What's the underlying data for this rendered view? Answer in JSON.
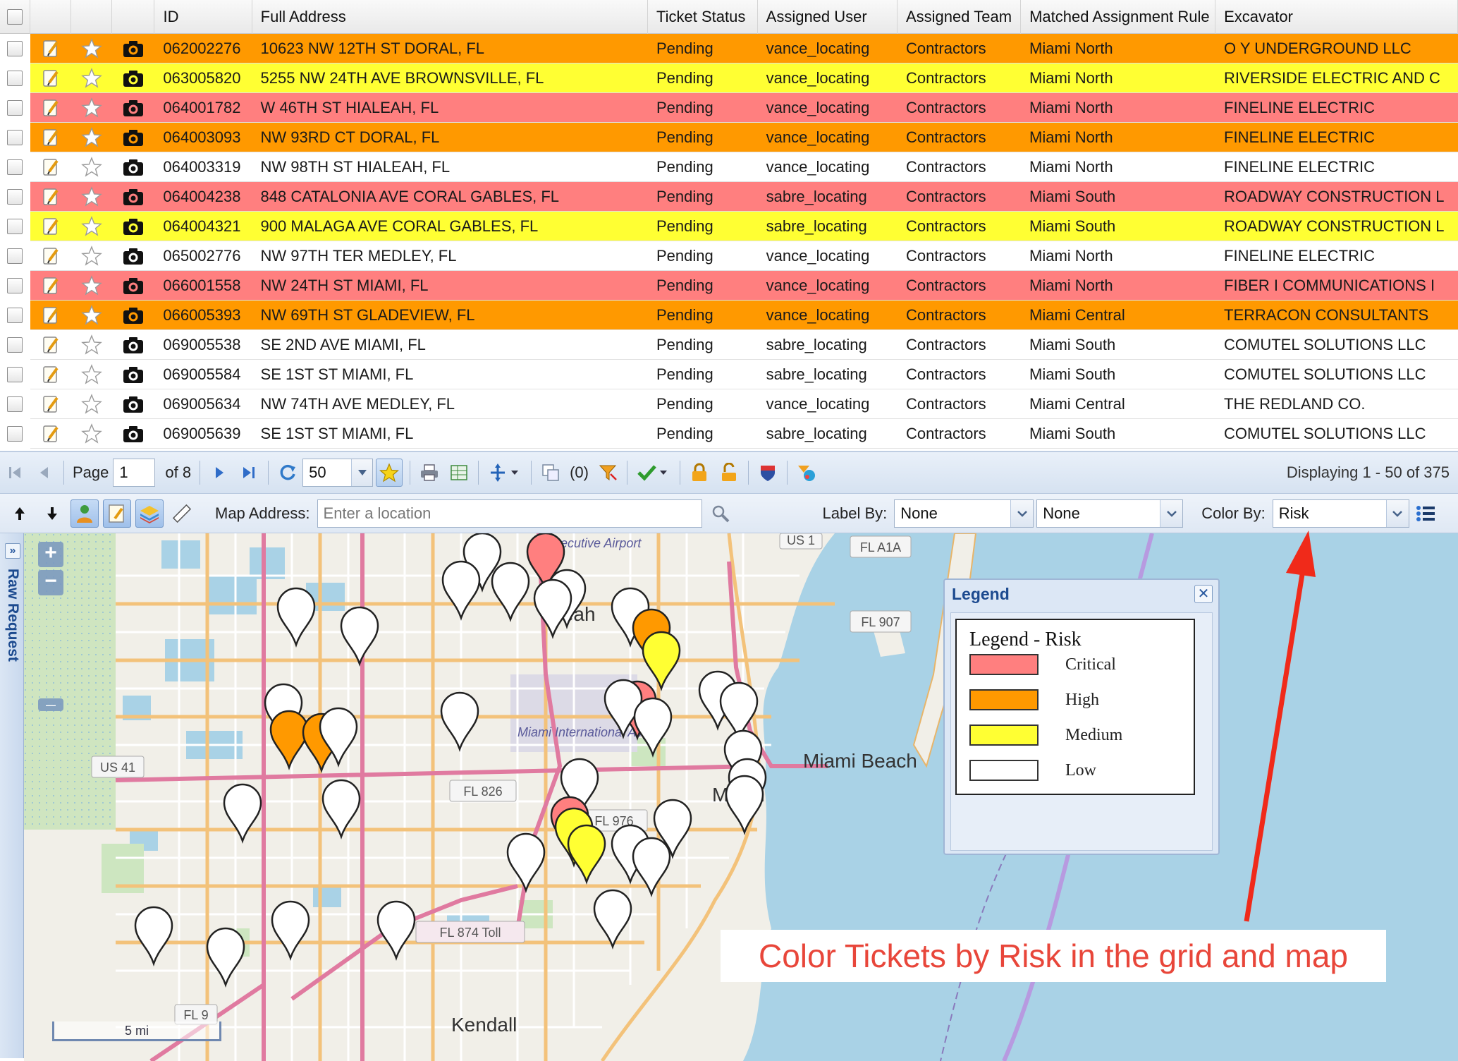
{
  "grid": {
    "columns": [
      "ID",
      "Full Address",
      "Ticket Status",
      "Assigned User",
      "Assigned Team",
      "Matched Assignment Rule",
      "Excavator"
    ],
    "rows": [
      {
        "id": "062002276",
        "address": "10623 NW 12TH ST DORAL, FL",
        "status": "Pending",
        "user": "vance_locating",
        "team": "Contractors",
        "rule": "Miami North",
        "excavator": "O Y UNDERGROUND LLC",
        "risk": "High"
      },
      {
        "id": "063005820",
        "address": "5255 NW 24TH AVE BROWNSVILLE, FL",
        "status": "Pending",
        "user": "vance_locating",
        "team": "Contractors",
        "rule": "Miami North",
        "excavator": "RIVERSIDE ELECTRIC AND C",
        "risk": "Medium"
      },
      {
        "id": "064001782",
        "address": "W 46TH ST HIALEAH, FL",
        "status": "Pending",
        "user": "vance_locating",
        "team": "Contractors",
        "rule": "Miami North",
        "excavator": "FINELINE ELECTRIC",
        "risk": "Critical"
      },
      {
        "id": "064003093",
        "address": "NW 93RD CT DORAL, FL",
        "status": "Pending",
        "user": "vance_locating",
        "team": "Contractors",
        "rule": "Miami North",
        "excavator": "FINELINE ELECTRIC",
        "risk": "High"
      },
      {
        "id": "064003319",
        "address": "NW 98TH ST HIALEAH, FL",
        "status": "Pending",
        "user": "vance_locating",
        "team": "Contractors",
        "rule": "Miami North",
        "excavator": "FINELINE ELECTRIC",
        "risk": "Low"
      },
      {
        "id": "064004238",
        "address": "848 CATALONIA AVE CORAL GABLES, FL",
        "status": "Pending",
        "user": "sabre_locating",
        "team": "Contractors",
        "rule": "Miami South",
        "excavator": "ROADWAY CONSTRUCTION L",
        "risk": "Critical"
      },
      {
        "id": "064004321",
        "address": "900 MALAGA AVE CORAL GABLES, FL",
        "status": "Pending",
        "user": "sabre_locating",
        "team": "Contractors",
        "rule": "Miami South",
        "excavator": "ROADWAY CONSTRUCTION L",
        "risk": "Medium"
      },
      {
        "id": "065002776",
        "address": "NW 97TH TER MEDLEY, FL",
        "status": "Pending",
        "user": "vance_locating",
        "team": "Contractors",
        "rule": "Miami North",
        "excavator": "FINELINE ELECTRIC",
        "risk": "Low"
      },
      {
        "id": "066001558",
        "address": "NW 24TH ST MIAMI, FL",
        "status": "Pending",
        "user": "vance_locating",
        "team": "Contractors",
        "rule": "Miami North",
        "excavator": "FIBER I COMMUNICATIONS I",
        "risk": "Critical"
      },
      {
        "id": "066005393",
        "address": "NW 69TH ST GLADEVIEW, FL",
        "status": "Pending",
        "user": "vance_locating",
        "team": "Contractors",
        "rule": "Miami Central",
        "excavator": "TERRACON CONSULTANTS",
        "risk": "High"
      },
      {
        "id": "069005538",
        "address": "SE 2ND AVE MIAMI, FL",
        "status": "Pending",
        "user": "sabre_locating",
        "team": "Contractors",
        "rule": "Miami South",
        "excavator": "COMUTEL SOLUTIONS LLC",
        "risk": "Low"
      },
      {
        "id": "069005584",
        "address": "SE 1ST ST MIAMI, FL",
        "status": "Pending",
        "user": "sabre_locating",
        "team": "Contractors",
        "rule": "Miami South",
        "excavator": "COMUTEL SOLUTIONS LLC",
        "risk": "Low"
      },
      {
        "id": "069005634",
        "address": "NW 74TH AVE MEDLEY, FL",
        "status": "Pending",
        "user": "vance_locating",
        "team": "Contractors",
        "rule": "Miami Central",
        "excavator": "THE REDLAND CO.",
        "risk": "Low"
      },
      {
        "id": "069005639",
        "address": "SE 1ST ST MIAMI, FL",
        "status": "Pending",
        "user": "sabre_locating",
        "team": "Contractors",
        "rule": "Miami South",
        "excavator": "COMUTEL SOLUTIONS LLC",
        "risk": "Low"
      }
    ]
  },
  "pager": {
    "page_label": "Page",
    "page_value": "1",
    "of_label": "of 8",
    "page_size": "50",
    "selected_count": "(0)",
    "display_text": "Displaying 1 - 50 of 375"
  },
  "map_toolbar": {
    "address_label": "Map Address:",
    "address_placeholder": "Enter a location",
    "label_by_label": "Label By:",
    "label_by_value_1": "None",
    "label_by_value_2": "None",
    "color_by_label": "Color By:",
    "color_by_value": "Risk"
  },
  "side_panel": {
    "title": "Raw Request"
  },
  "map": {
    "scale_label": "5 mi",
    "place_labels": [
      "Miami Beach",
      "Kendall",
      "Miami",
      "aleah",
      "Miami International Airport",
      "Executive Airport"
    ],
    "road_labels": [
      "FL A1A",
      "FL 907",
      "FL 826",
      "FL 976",
      "FL 874 Toll",
      "US 41",
      "US 1",
      "FL 9"
    ]
  },
  "legend": {
    "header": "Legend",
    "title": "Legend - Risk",
    "items": [
      {
        "name": "Critical",
        "color": "#ff7f7f"
      },
      {
        "name": "High",
        "color": "#ff9900"
      },
      {
        "name": "Medium",
        "color": "#ffff33"
      },
      {
        "name": "Low",
        "color": "#ffffff"
      }
    ]
  },
  "annotation": {
    "text": "Color Tickets by Risk in the grid and map",
    "color": "#e8463a"
  },
  "risk_colors": {
    "Critical": "#ff7f7f",
    "High": "#ff9900",
    "Medium": "#ffff33",
    "Low": "#ffffff"
  }
}
